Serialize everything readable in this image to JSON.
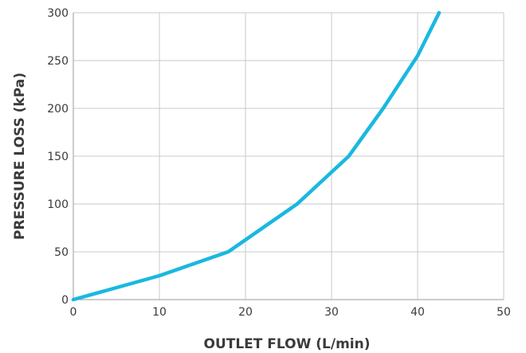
{
  "chart_data": {
    "type": "line",
    "title": "",
    "xlabel": "OUTLET FLOW (L/min)",
    "ylabel": "PRESSURE LOSS (kPa)",
    "xlim": [
      0,
      50
    ],
    "ylim": [
      0,
      300
    ],
    "xticks": [
      0,
      10,
      20,
      30,
      40,
      50
    ],
    "yticks": [
      0,
      50,
      100,
      150,
      200,
      250,
      300
    ],
    "grid": true,
    "legend": "none",
    "series": [
      {
        "color": "#19b8e0",
        "x": [
          0,
          10,
          18,
          26,
          32,
          36,
          40,
          42.5
        ],
        "y": [
          0,
          25,
          50,
          100,
          150,
          200,
          255,
          300
        ]
      }
    ]
  }
}
